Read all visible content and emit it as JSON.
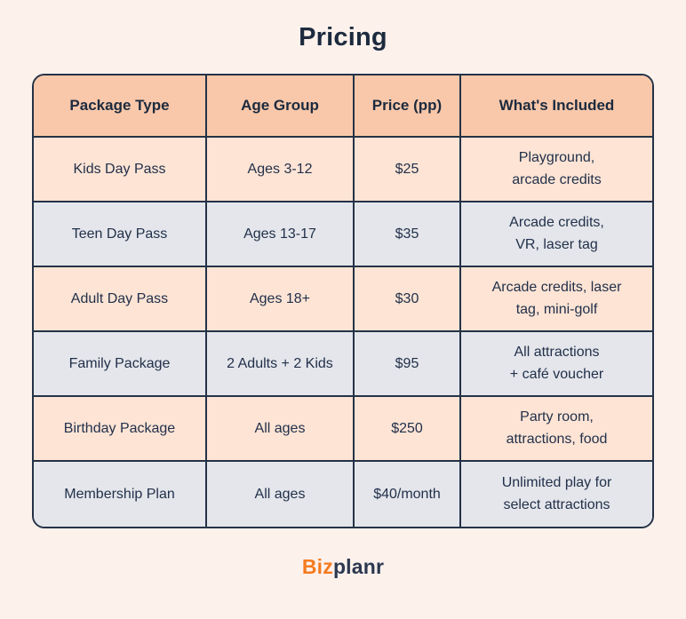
{
  "page": {
    "title": "Pricing"
  },
  "colors": {
    "page_background": "#fdf1ec",
    "header_bg": "#f9c8aa",
    "row_peach": "#fde4d5",
    "row_gray": "#e4e6eb",
    "border": "#243247",
    "text": "#1e2c40",
    "brand_orange": "#f47b20",
    "brand_navy": "#2b3850"
  },
  "table": {
    "headers": [
      "Package Type",
      "Age Group",
      "Price (pp)",
      "What's Included"
    ],
    "rows": [
      [
        "Kids Day Pass",
        "Ages 3-12",
        "$25",
        "Playground,\narcade credits"
      ],
      [
        "Teen Day Pass",
        "Ages 13-17",
        "$35",
        "Arcade credits,\nVR, laser tag"
      ],
      [
        "Adult Day Pass",
        "Ages 18+",
        "$30",
        "Arcade credits, laser\ntag, mini-golf"
      ],
      [
        "Family Package",
        "2 Adults + 2 Kids",
        "$95",
        "All attractions\n+ café voucher"
      ],
      [
        "Birthday Package",
        "All ages",
        "$250",
        "Party room,\nattractions, food"
      ],
      [
        "Membership Plan",
        "All ages",
        "$40/month",
        "Unlimited play for\nselect attractions"
      ]
    ]
  },
  "footer": {
    "logo_part1": "Biz",
    "logo_part2": "planr"
  }
}
